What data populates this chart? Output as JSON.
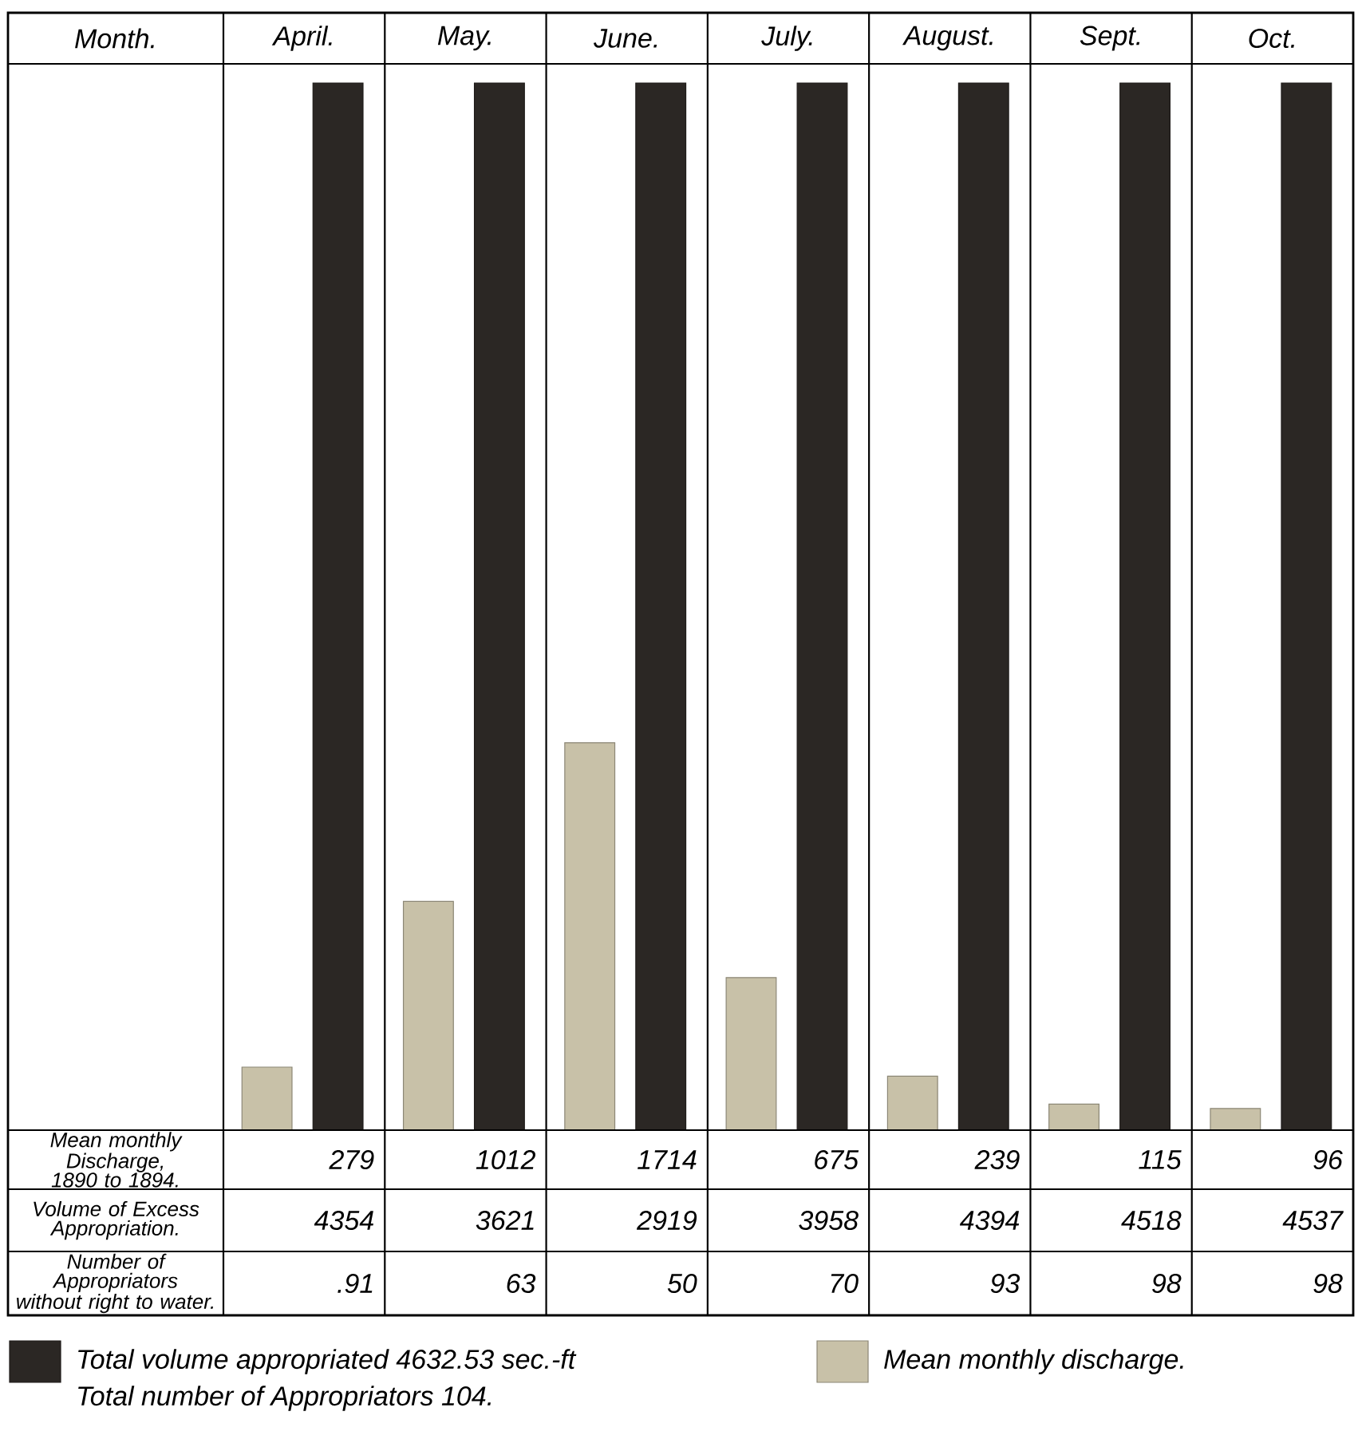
{
  "chart_data": {
    "type": "bar",
    "xlabel": "Month.",
    "categories": [
      "April.",
      "May.",
      "June.",
      "July.",
      "August.",
      "Sept.",
      "Oct."
    ],
    "series": [
      {
        "name": "Mean monthly discharge.",
        "color": "#c8c1a8",
        "values": [
          279,
          1012,
          1714,
          675,
          239,
          115,
          96
        ],
        "value_labels": [
          "279",
          "1012",
          "1714",
          "675",
          "239",
          "115",
          "96"
        ]
      },
      {
        "name": "Total volume appropriated 4632.53 sec.-ft",
        "color": "#2b2724",
        "values": [
          4632.53,
          4632.53,
          4632.53,
          4632.53,
          4632.53,
          4632.53,
          4632.53
        ]
      }
    ],
    "legend": "bottom",
    "annotations": [
      "Total number of Appropriators 104.",
      "Mean monthly Discharge, 1890 to 1894.",
      "Volume of Excess Appropriation.",
      "4354",
      "3621",
      "2919",
      "3958",
      "4394",
      "4518",
      "4537",
      "Number of Appropriators without right to water.",
      ".91",
      "63",
      "50",
      "70",
      "93",
      "98",
      "98"
    ]
  }
}
